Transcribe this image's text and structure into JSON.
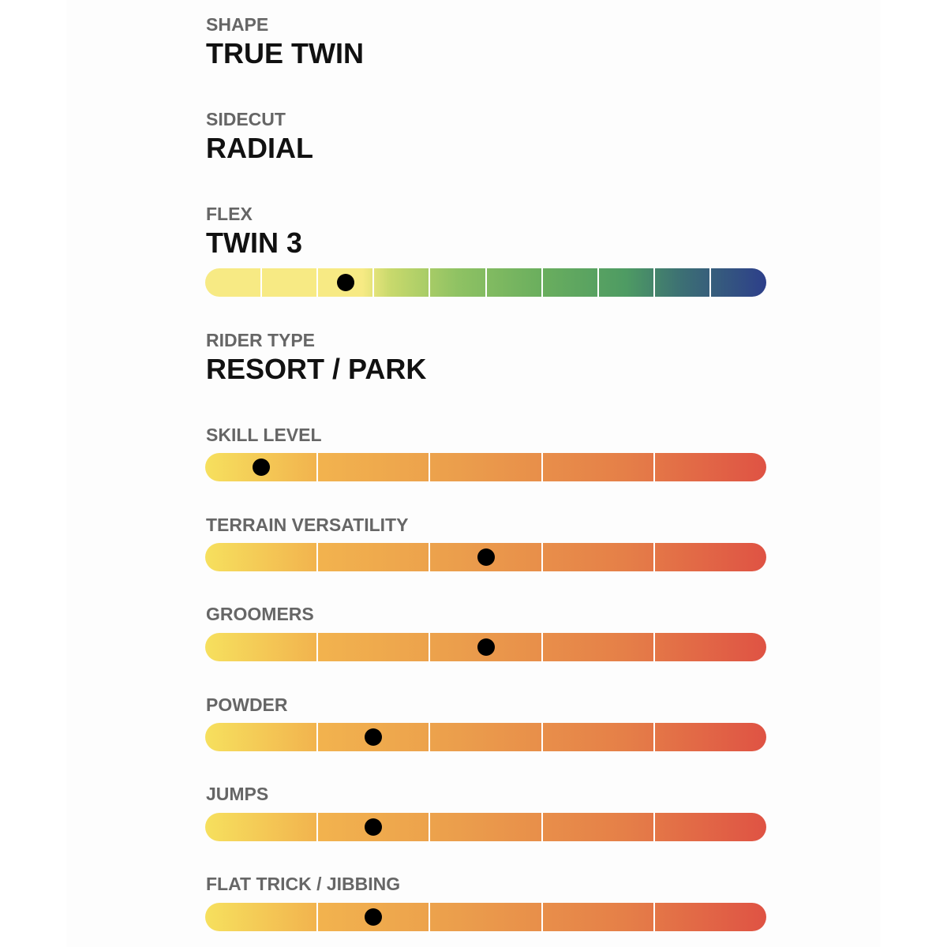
{
  "specs": {
    "shape": {
      "label": "SHAPE",
      "value": "TRUE TWIN"
    },
    "sidecut": {
      "label": "SIDECUT",
      "value": "RADIAL"
    },
    "flex": {
      "label": "FLEX",
      "value": "TWIN 3",
      "segments": 10,
      "level": 2.5
    },
    "rider_type": {
      "label": "RIDER TYPE",
      "value": "RESORT / PARK"
    }
  },
  "ratings": [
    {
      "label": "SKILL LEVEL",
      "segments": 5,
      "level": 0.5
    },
    {
      "label": "TERRAIN VERSATILITY",
      "segments": 5,
      "level": 2.5
    },
    {
      "label": "GROOMERS",
      "segments": 5,
      "level": 2.5
    },
    {
      "label": "POWDER",
      "segments": 5,
      "level": 1.5
    },
    {
      "label": "JUMPS",
      "segments": 5,
      "level": 1.5
    },
    {
      "label": "FLAT TRICK / JIBBING",
      "segments": 5,
      "level": 1.5
    }
  ],
  "colors": {
    "flex_scale": [
      "#f7ea84",
      "#8fc263",
      "#4e9b63",
      "#2d3f8a"
    ],
    "rating_scale": [
      "#f6e05e",
      "#eb9e4c",
      "#df5344"
    ],
    "marker": "#000000"
  }
}
